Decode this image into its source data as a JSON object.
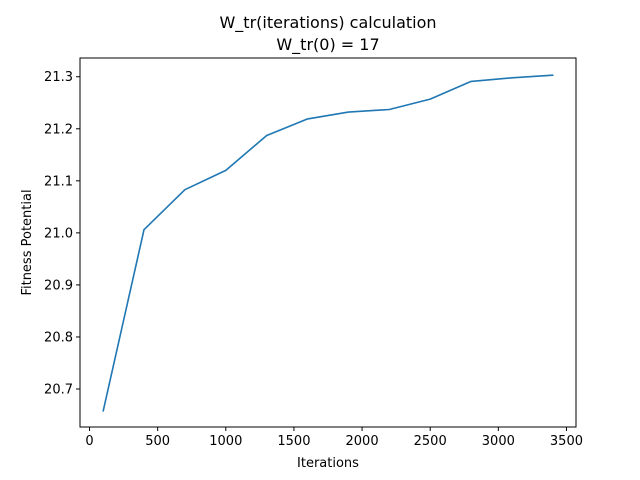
{
  "chart_data": {
    "type": "line",
    "title": "W_tr(iterations) calculation",
    "subtitle": "W_tr(0) = 17",
    "xlabel": "Iterations",
    "ylabel": "Fitness Potential",
    "xlim": [
      -70,
      3570
    ],
    "ylim": [
      20.627,
      21.336
    ],
    "grid": false,
    "xticks": [
      0,
      500,
      1000,
      1500,
      2000,
      2500,
      3000,
      3500
    ],
    "xtick_labels": [
      "0",
      "500",
      "1000",
      "1500",
      "2000",
      "2500",
      "3000",
      "3500"
    ],
    "yticks": [
      20.7,
      20.8,
      20.9,
      21.0,
      21.1,
      21.2,
      21.3
    ],
    "ytick_labels": [
      "20.7",
      "20.8",
      "20.9",
      "21.0",
      "21.1",
      "21.2",
      "21.3"
    ],
    "series": [
      {
        "color": "#1f77b4",
        "x": [
          100,
          400,
          700,
          1000,
          1300,
          1600,
          1900,
          2200,
          2500,
          2800,
          3100,
          3400
        ],
        "y": [
          20.658,
          21.006,
          21.083,
          21.12,
          21.187,
          21.219,
          21.232,
          21.237,
          21.257,
          21.291,
          21.298,
          21.303
        ]
      }
    ]
  }
}
